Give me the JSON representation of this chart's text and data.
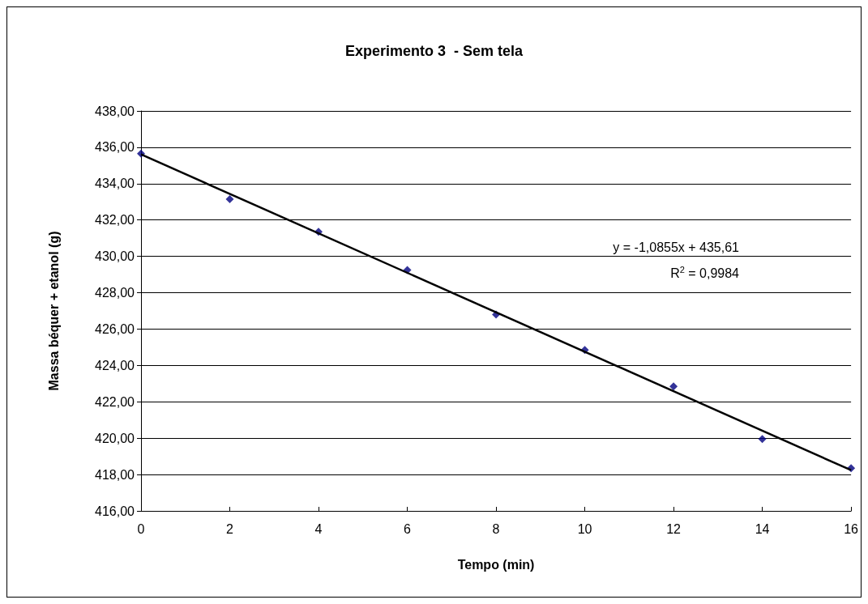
{
  "chart_data": {
    "type": "scatter",
    "title": "Experimento 3  - Sem tela",
    "xlabel": "Tempo (min)",
    "ylabel": "Massa béquer + etanol (g)",
    "xlim": [
      0,
      16
    ],
    "xticks": [
      0,
      2,
      4,
      6,
      8,
      10,
      12,
      14,
      16
    ],
    "ylim": [
      416,
      438
    ],
    "yticks": [
      {
        "value": 416,
        "label": "416,00"
      },
      {
        "value": 418,
        "label": "418,00"
      },
      {
        "value": 420,
        "label": "420,00"
      },
      {
        "value": 422,
        "label": "422,00"
      },
      {
        "value": 424,
        "label": "424,00"
      },
      {
        "value": 426,
        "label": "426,00"
      },
      {
        "value": 428,
        "label": "428,00"
      },
      {
        "value": 430,
        "label": "430,00"
      },
      {
        "value": 432,
        "label": "432,00"
      },
      {
        "value": 434,
        "label": "434,00"
      },
      {
        "value": 436,
        "label": "436,00"
      },
      {
        "value": 438,
        "label": "438,00"
      }
    ],
    "grid": "y",
    "series": [
      {
        "color": "#000080",
        "marker": "diamond",
        "x": [
          0,
          2,
          4,
          6,
          8,
          10,
          12,
          14,
          16
        ],
        "values": [
          435.65,
          433.15,
          431.35,
          429.25,
          426.8,
          424.85,
          422.85,
          419.95,
          418.35
        ]
      },
      {
        "type": "line",
        "color": "#000000",
        "marker": "none",
        "line_style": "solid",
        "x": [
          0,
          16
        ],
        "values": [
          435.61,
          418.24
        ]
      }
    ],
    "annotations": [
      "y = -1,0855x + 435,61",
      "R$^{2}$ = 0,9984"
    ]
  }
}
